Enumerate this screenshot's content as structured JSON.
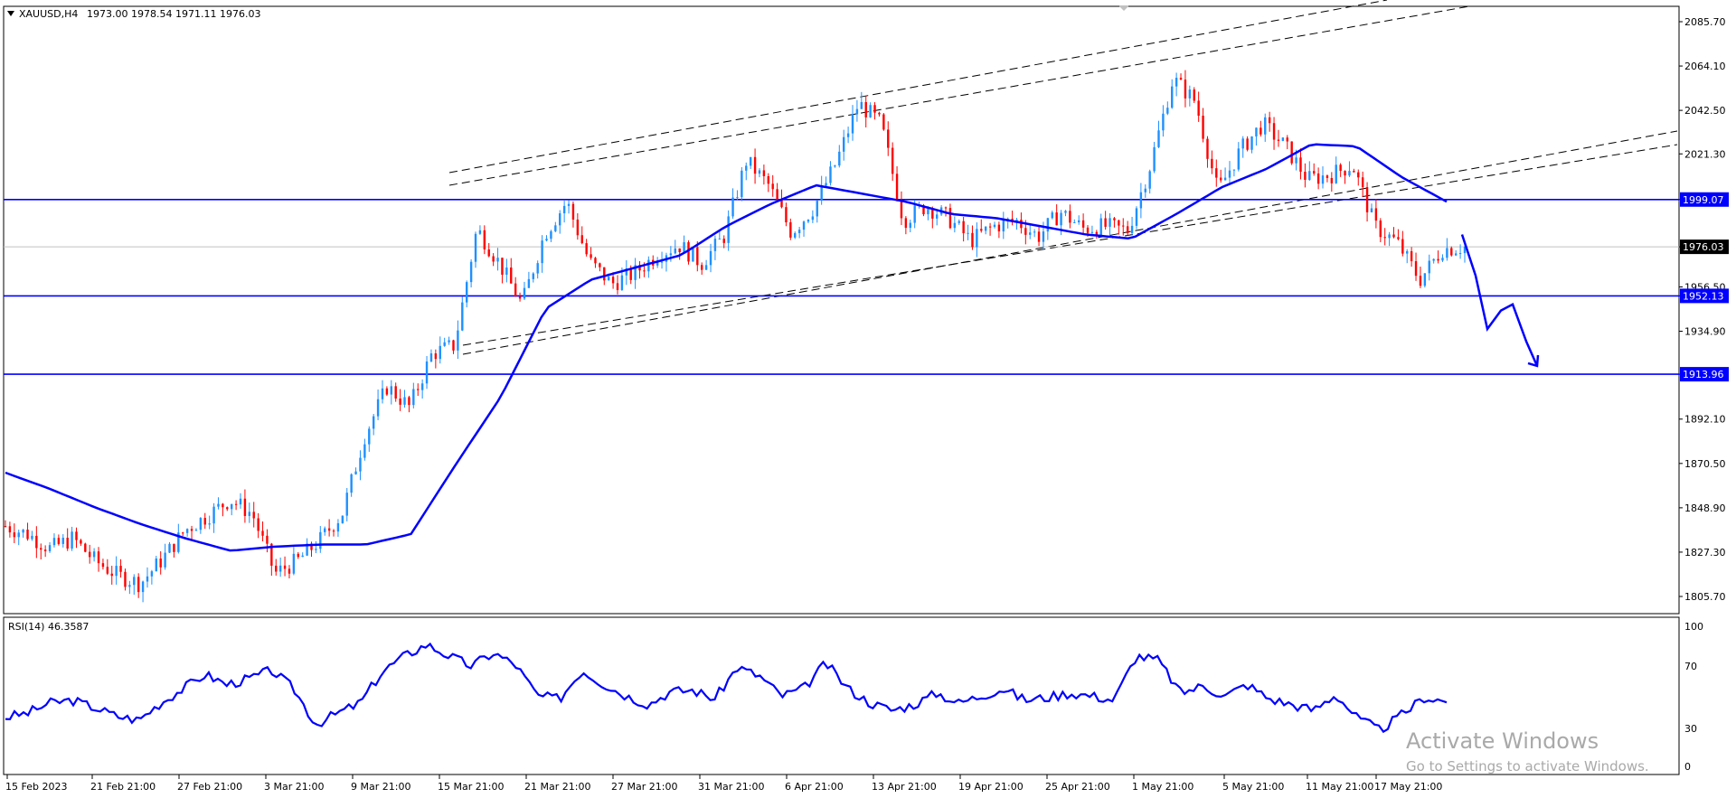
{
  "header": {
    "symbol": "XAUUSD,H4",
    "ohlc": "1973.00 1978.54 1971.11 1976.03"
  },
  "rsi": {
    "label": "RSI(14) 46.3587",
    "levels": [
      "100",
      "70",
      "30",
      "0"
    ]
  },
  "colors": {
    "bull": "#1e90ff",
    "bear": "#ff0000",
    "ma": "#0000ff",
    "rsi": "#0000ff",
    "level_line": "#0000ff",
    "channel": "#000000",
    "background": "#ffffff"
  },
  "watermark": {
    "line1": "Activate Windows",
    "line2": "Go to Settings to activate Windows."
  },
  "chart_data": {
    "type": "candlestick",
    "title": "XAUUSD,H4",
    "y_ticks": [
      "2085.70",
      "2064.10",
      "2042.50",
      "2021.30",
      "1999.07",
      "1976.03",
      "1956.50",
      "1952.13",
      "1934.90",
      "1913.96",
      "1892.10",
      "1870.50",
      "1848.90",
      "1827.30",
      "1805.70"
    ],
    "ylim": [
      1800,
      2098
    ],
    "x_labels": [
      "15 Feb 2023",
      "21 Feb 21:00",
      "27 Feb 21:00",
      "3 Mar 21:00",
      "9 Mar 21:00",
      "15 Mar 21:00",
      "21 Mar 21:00",
      "27 Mar 21:00",
      "31 Mar 21:00",
      "6 Apr 21:00",
      "13 Apr 21:00",
      "19 Apr 21:00",
      "25 Apr 21:00",
      "1 May 21:00",
      "5 May 21:00",
      "11 May 21:00",
      "17 May 21:00"
    ],
    "last_price": 1976.03,
    "horizontal_levels": [
      {
        "value": 1999.07,
        "label": "1999.07"
      },
      {
        "value": 1952.13,
        "label": "1952.13"
      },
      {
        "value": 1913.96,
        "label": "1913.96"
      }
    ],
    "close_path": [
      1840,
      1836,
      1829,
      1834,
      1823,
      1816,
      1812,
      1824,
      1838,
      1845,
      1853,
      1846,
      1817,
      1823,
      1833,
      1846,
      1884,
      1908,
      1898,
      1924,
      1928,
      1985,
      1968,
      1948,
      1982,
      1998,
      1969,
      1958,
      1963,
      1972,
      1977,
      1968,
      1981,
      2018,
      2006,
      1983,
      1995,
      2017,
      2046,
      2036,
      1989,
      1996,
      1990,
      1979,
      1986,
      1989,
      1981,
      1993,
      1985,
      1986,
      1984,
      2016,
      2058,
      2047,
      2003,
      2023,
      2036,
      2025,
      2009,
      2011,
      2016,
      1986,
      1978,
      1960,
      1975,
      1976
    ],
    "moving_average": [
      1866,
      1858,
      1849,
      1841,
      1834,
      1828,
      1830,
      1831,
      1831,
      1836,
      1870,
      1903,
      1946,
      1960,
      1966,
      1972,
      1986,
      1997,
      2006,
      2002,
      1998,
      1992,
      1990,
      1986,
      1982,
      1980,
      1992,
      2005,
      2014,
      2026,
      2025,
      2010,
      1998
    ],
    "projection": [
      1982,
      1962,
      1936,
      1945,
      1948,
      1930,
      1918
    ],
    "rsi_values": [
      35,
      38,
      45,
      47,
      42,
      36,
      33,
      45,
      55,
      65,
      58,
      62,
      68,
      55,
      30,
      38,
      45,
      67,
      78,
      86,
      78,
      71,
      80,
      72,
      50,
      48,
      68,
      58,
      50,
      44,
      53,
      54,
      48,
      70,
      64,
      50,
      55,
      73,
      55,
      45,
      40,
      44,
      52,
      45,
      50,
      55,
      47,
      49,
      52,
      50,
      47,
      78,
      75,
      52,
      57,
      50,
      58,
      48,
      44,
      40,
      51,
      34,
      26,
      37,
      49,
      46
    ]
  }
}
